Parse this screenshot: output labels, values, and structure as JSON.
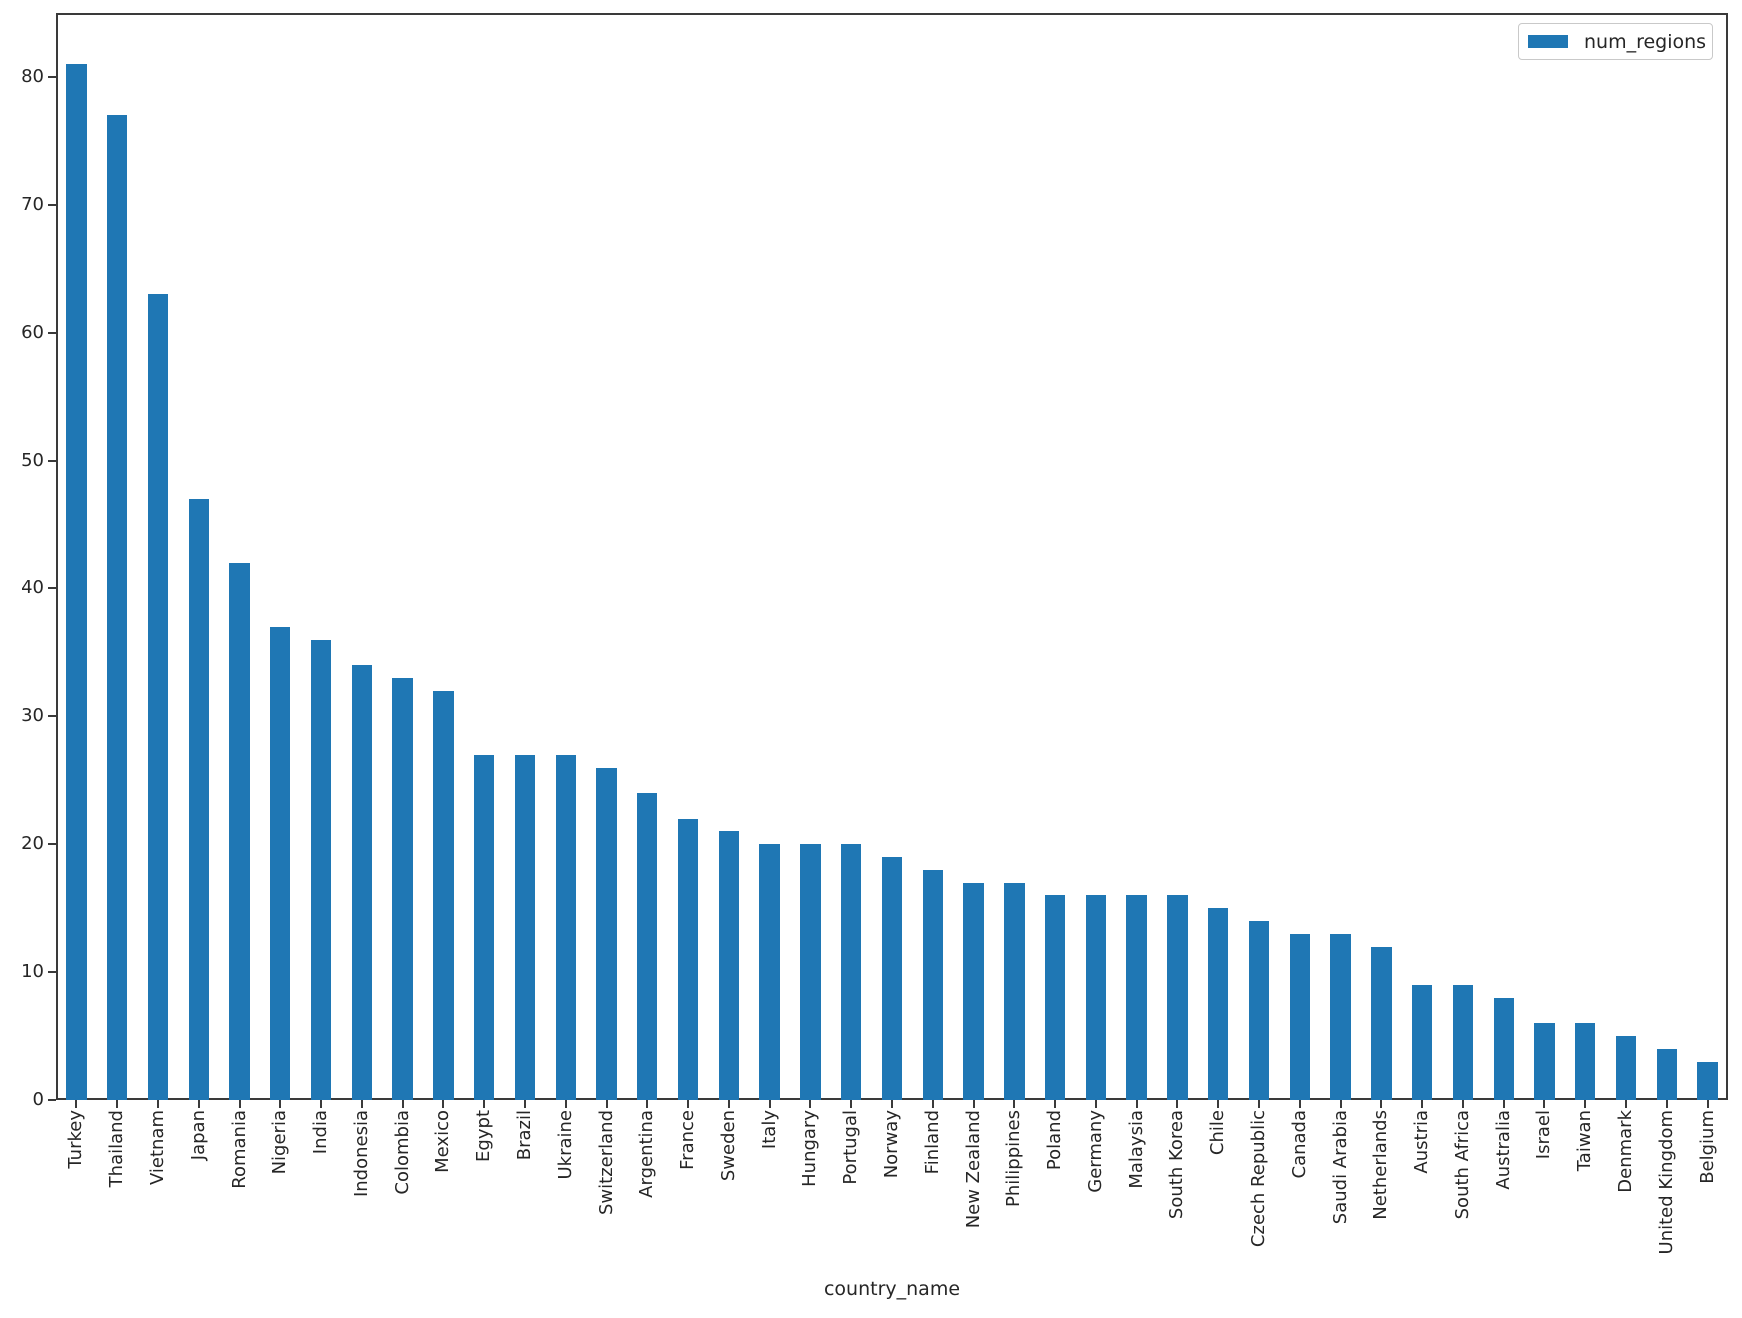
{
  "chart_data": {
    "type": "bar",
    "title": "",
    "xlabel": "country_name",
    "ylabel": "",
    "legend": {
      "label": "num_regions",
      "position": "upper right"
    },
    "colors": {
      "bar": "#1f77b4",
      "spine": "#3a3a3a",
      "text": "#262626",
      "legend_border": "#c9c9c9"
    },
    "ylim": [
      0,
      85
    ],
    "yticks": [
      0,
      10,
      20,
      30,
      40,
      50,
      60,
      70,
      80
    ],
    "grid": false,
    "categories": [
      "Turkey",
      "Thailand",
      "Vietnam",
      "Japan",
      "Romania",
      "Nigeria",
      "India",
      "Indonesia",
      "Colombia",
      "Mexico",
      "Egypt",
      "Brazil",
      "Ukraine",
      "Switzerland",
      "Argentina",
      "France",
      "Sweden",
      "Italy",
      "Hungary",
      "Portugal",
      "Norway",
      "Finland",
      "New Zealand",
      "Philippines",
      "Poland",
      "Germany",
      "Malaysia",
      "South Korea",
      "Chile",
      "Czech Republic",
      "Canada",
      "Saudi Arabia",
      "Netherlands",
      "Austria",
      "South Africa",
      "Australia",
      "Israel",
      "Taiwan",
      "Denmark",
      "United Kingdom",
      "Belgium"
    ],
    "values": [
      81,
      77,
      63,
      47,
      42,
      37,
      36,
      34,
      33,
      32,
      27,
      27,
      27,
      26,
      24,
      22,
      21,
      20,
      20,
      20,
      19,
      18,
      17,
      17,
      16,
      16,
      16,
      16,
      15,
      14,
      13,
      13,
      12,
      9,
      9,
      8,
      6,
      6,
      5,
      4,
      3
    ]
  }
}
